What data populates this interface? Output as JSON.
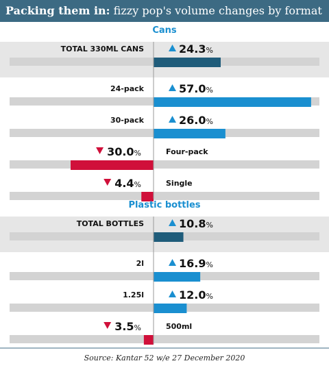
{
  "header": {
    "title_bold": "Packing them in:",
    "title_rest": " fizzy pop's volume changes by format"
  },
  "source": "Source: Kantar 52 w/e 27 December 2020",
  "colors": {
    "positive": "#1a8fd0",
    "negative": "#d0103a",
    "total": "#1f5c7a",
    "track": "#d3d3d3",
    "band": "#e6e6e6",
    "accent": "#1a8fd0"
  },
  "chart_data": {
    "type": "bar",
    "unit": "%",
    "xlim": [
      -60,
      60
    ],
    "sections": [
      {
        "title": "Cans",
        "rows": [
          {
            "label": "TOTAL 330ML CANS",
            "value": 24.3,
            "display": "24.3",
            "direction": "up",
            "total": true
          },
          {
            "label": "24-pack",
            "value": 57.0,
            "display": "57.0",
            "direction": "up",
            "total": false
          },
          {
            "label": "30-pack",
            "value": 26.0,
            "display": "26.0",
            "direction": "up",
            "total": false
          },
          {
            "label": "Four-pack",
            "value": -30.0,
            "display": "30.0",
            "direction": "down",
            "total": false
          },
          {
            "label": "Single",
            "value": -4.4,
            "display": "4.4",
            "direction": "down",
            "total": false
          }
        ]
      },
      {
        "title": "Plastic bottles",
        "rows": [
          {
            "label": "TOTAL BOTTLES",
            "value": 10.8,
            "display": "10.8",
            "direction": "up",
            "total": true
          },
          {
            "label": "2l",
            "value": 16.9,
            "display": "16.9",
            "direction": "up",
            "total": false
          },
          {
            "label": "1.25l",
            "value": 12.0,
            "display": "12.0",
            "direction": "up",
            "total": false
          },
          {
            "label": "500ml",
            "value": -3.5,
            "display": "3.5",
            "direction": "down",
            "total": false
          }
        ]
      }
    ]
  }
}
